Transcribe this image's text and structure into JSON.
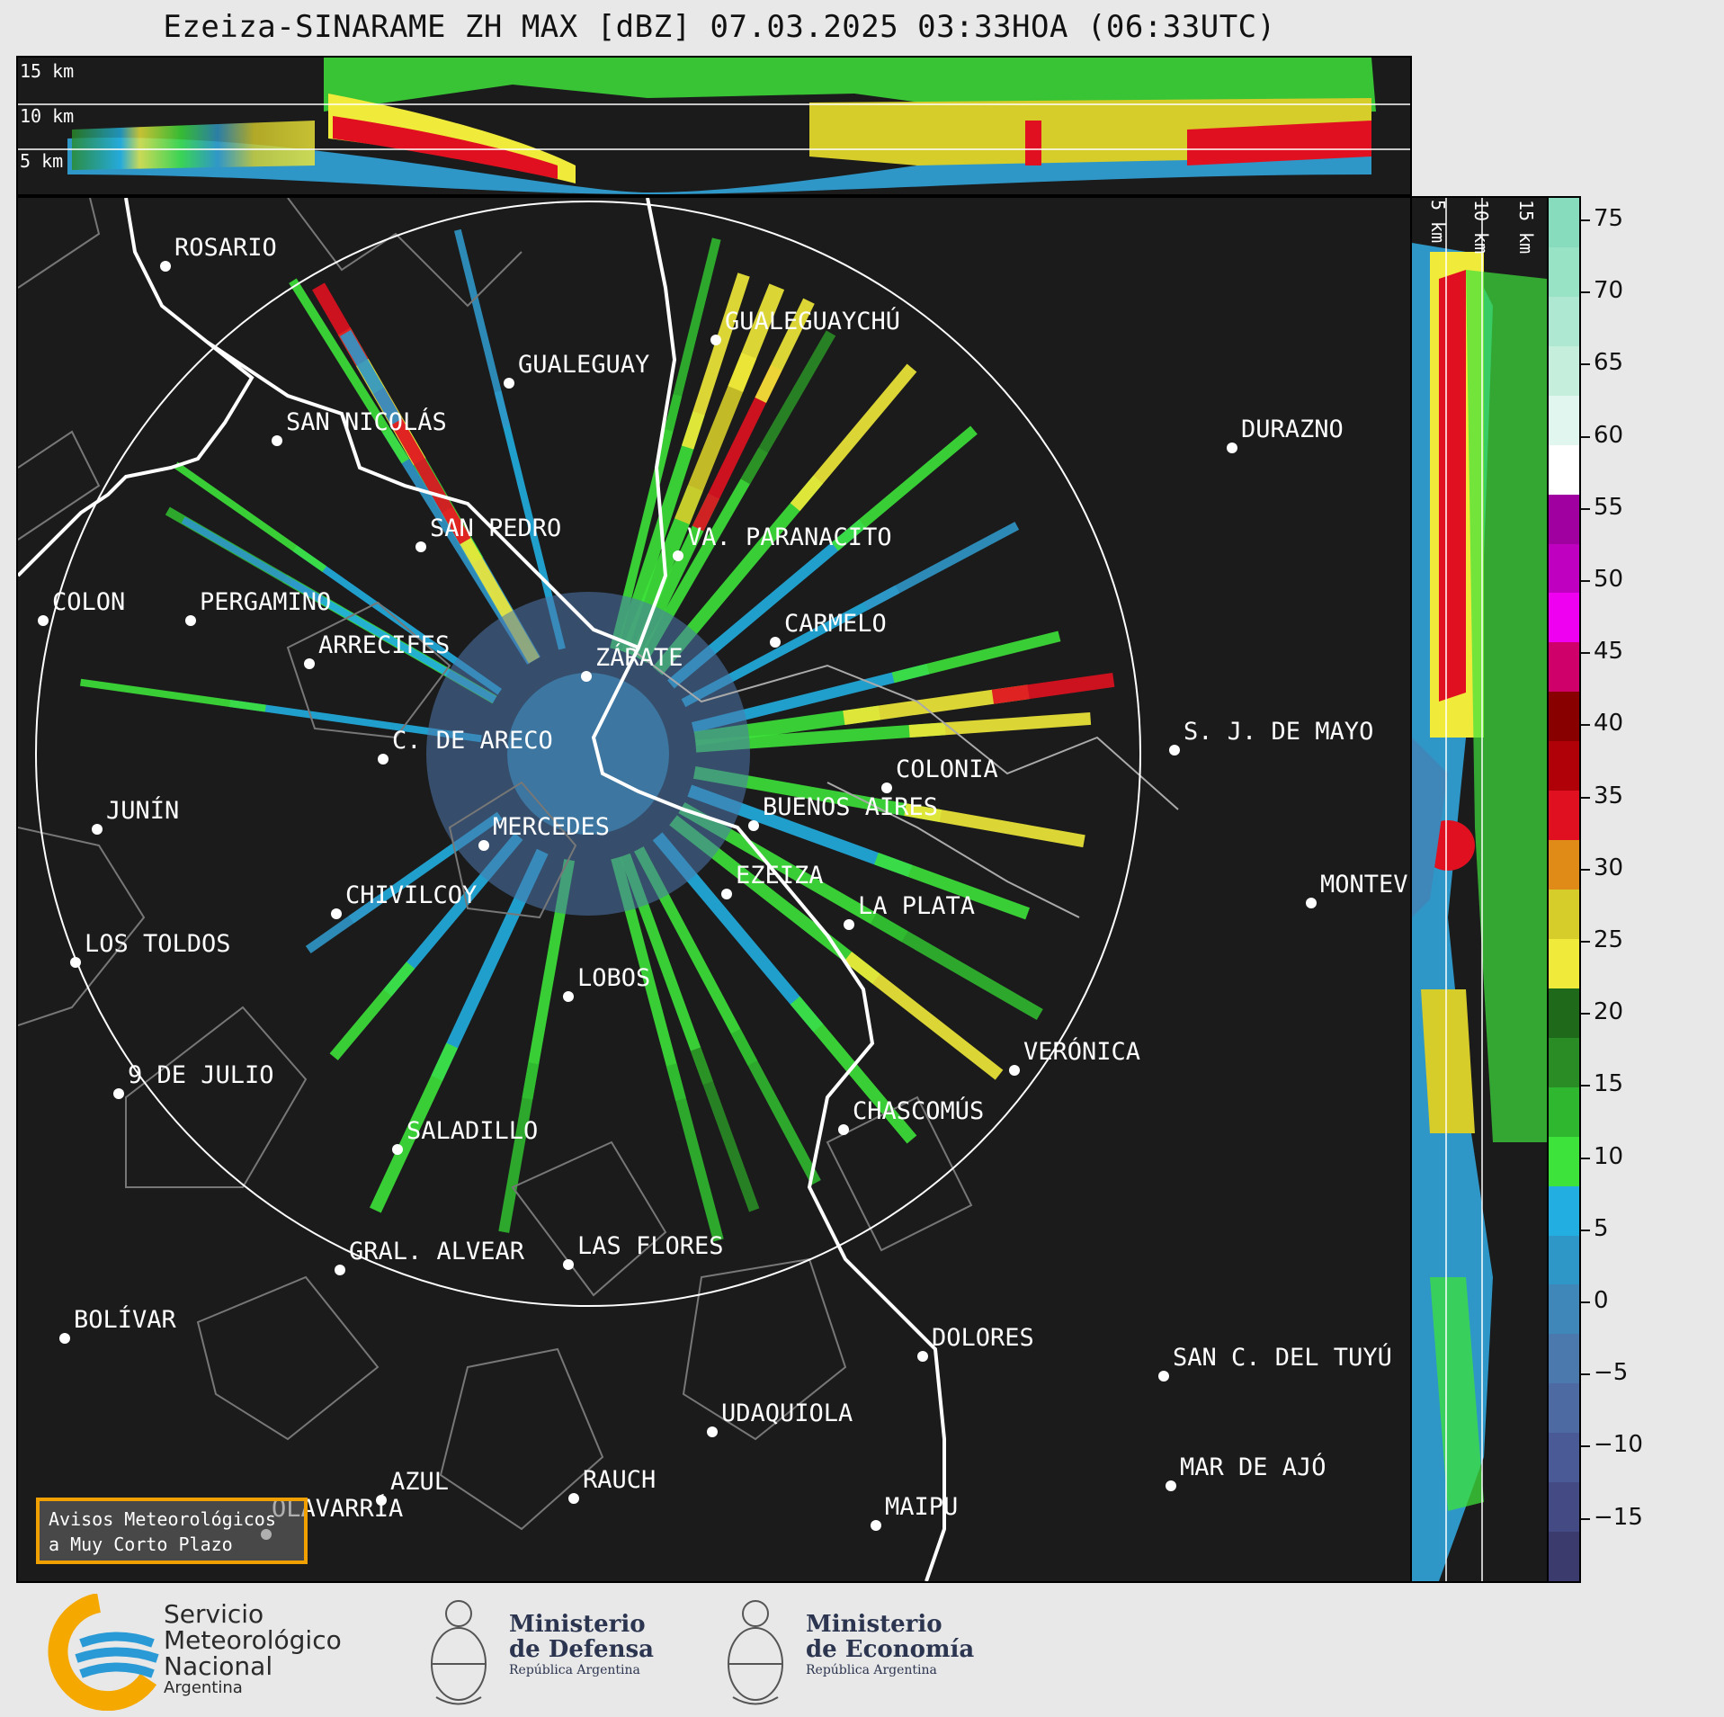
{
  "title": "Ezeiza-SINARAME ZH MAX [dBZ] 07.03.2025 03:33HOA (06:33UTC)",
  "top_panel": {
    "height_labels": [
      "15 km",
      "10 km",
      "5 km"
    ]
  },
  "side_panel": {
    "height_labels": [
      "5 km",
      "10 km",
      "15 km"
    ]
  },
  "colorbar": {
    "unit": "dBZ",
    "ticks": [
      "75",
      "70",
      "65",
      "60",
      "55",
      "50",
      "45",
      "40",
      "35",
      "30",
      "25",
      "20",
      "15",
      "10",
      "5",
      "0",
      "−5",
      "−10",
      "−15"
    ],
    "colors": [
      "#3b3b6e",
      "#434a84",
      "#4a5a96",
      "#4d6aa2",
      "#4c79ad",
      "#3e87b8",
      "#2f97c8",
      "#22aee0",
      "#3de23a",
      "#2fb82f",
      "#2a8c25",
      "#1f6a1a",
      "#f0ea3a",
      "#d6cc2a",
      "#e08a18",
      "#e01020",
      "#b00008",
      "#880000",
      "#d0006a",
      "#f000f0",
      "#c000c0",
      "#a000a0",
      "#ffffff",
      "#e0f6ee",
      "#c6eedd",
      "#aee8d2",
      "#98e2c6",
      "#86dcbc"
    ]
  },
  "cities": [
    {
      "name": "ROSARIO"
    },
    {
      "name": "GUALEGUAYCHÚ"
    },
    {
      "name": "GUALEGUAY"
    },
    {
      "name": "SAN NICOLÁS"
    },
    {
      "name": "DURAZNO"
    },
    {
      "name": "SAN PEDRO"
    },
    {
      "name": "VA. PARANACITO"
    },
    {
      "name": "COLON"
    },
    {
      "name": "PERGAMINO"
    },
    {
      "name": "CARMELO"
    },
    {
      "name": "ARRECIFES"
    },
    {
      "name": "ZÁRATE"
    },
    {
      "name": "S. J. DE MAYO"
    },
    {
      "name": "C. DE ARECO"
    },
    {
      "name": "COLONIA"
    },
    {
      "name": "JUNÍN"
    },
    {
      "name": "BUENOS AIRES"
    },
    {
      "name": "MERCEDES"
    },
    {
      "name": "EZEIZA"
    },
    {
      "name": "MONTEVIDEO"
    },
    {
      "name": "CHIVILCOY"
    },
    {
      "name": "LA PLATA"
    },
    {
      "name": "LOS TOLDOS"
    },
    {
      "name": "LOBOS"
    },
    {
      "name": "VERÓNICA"
    },
    {
      "name": "9 DE JULIO"
    },
    {
      "name": "CHASCOMÚS"
    },
    {
      "name": "SALADILLO"
    },
    {
      "name": "GRAL. ALVEAR"
    },
    {
      "name": "LAS FLORES"
    },
    {
      "name": "BOLÍVAR"
    },
    {
      "name": "DOLORES"
    },
    {
      "name": "SAN C. DEL TUYÚ"
    },
    {
      "name": "UDAQUIOLA"
    },
    {
      "name": "MAR DE AJÓ"
    },
    {
      "name": "AZUL"
    },
    {
      "name": "RAUCH"
    },
    {
      "name": "OLAVARRÍA"
    },
    {
      "name": "MAIPU"
    }
  ],
  "warning_box": {
    "line1": "Avisos Meteorológicos",
    "line2": "a Muy Corto Plazo"
  },
  "logos": {
    "smn_line1": "Servicio",
    "smn_line2": "Meteorológico",
    "smn_line3": "Nacional",
    "smn_line4": "Argentina",
    "defensa_line1": "Ministerio",
    "defensa_line2": "de Defensa",
    "defensa_line3": "República Argentina",
    "economia_line1": "Ministerio",
    "economia_line2": "de Economía",
    "economia_line3": "República Argentina"
  }
}
